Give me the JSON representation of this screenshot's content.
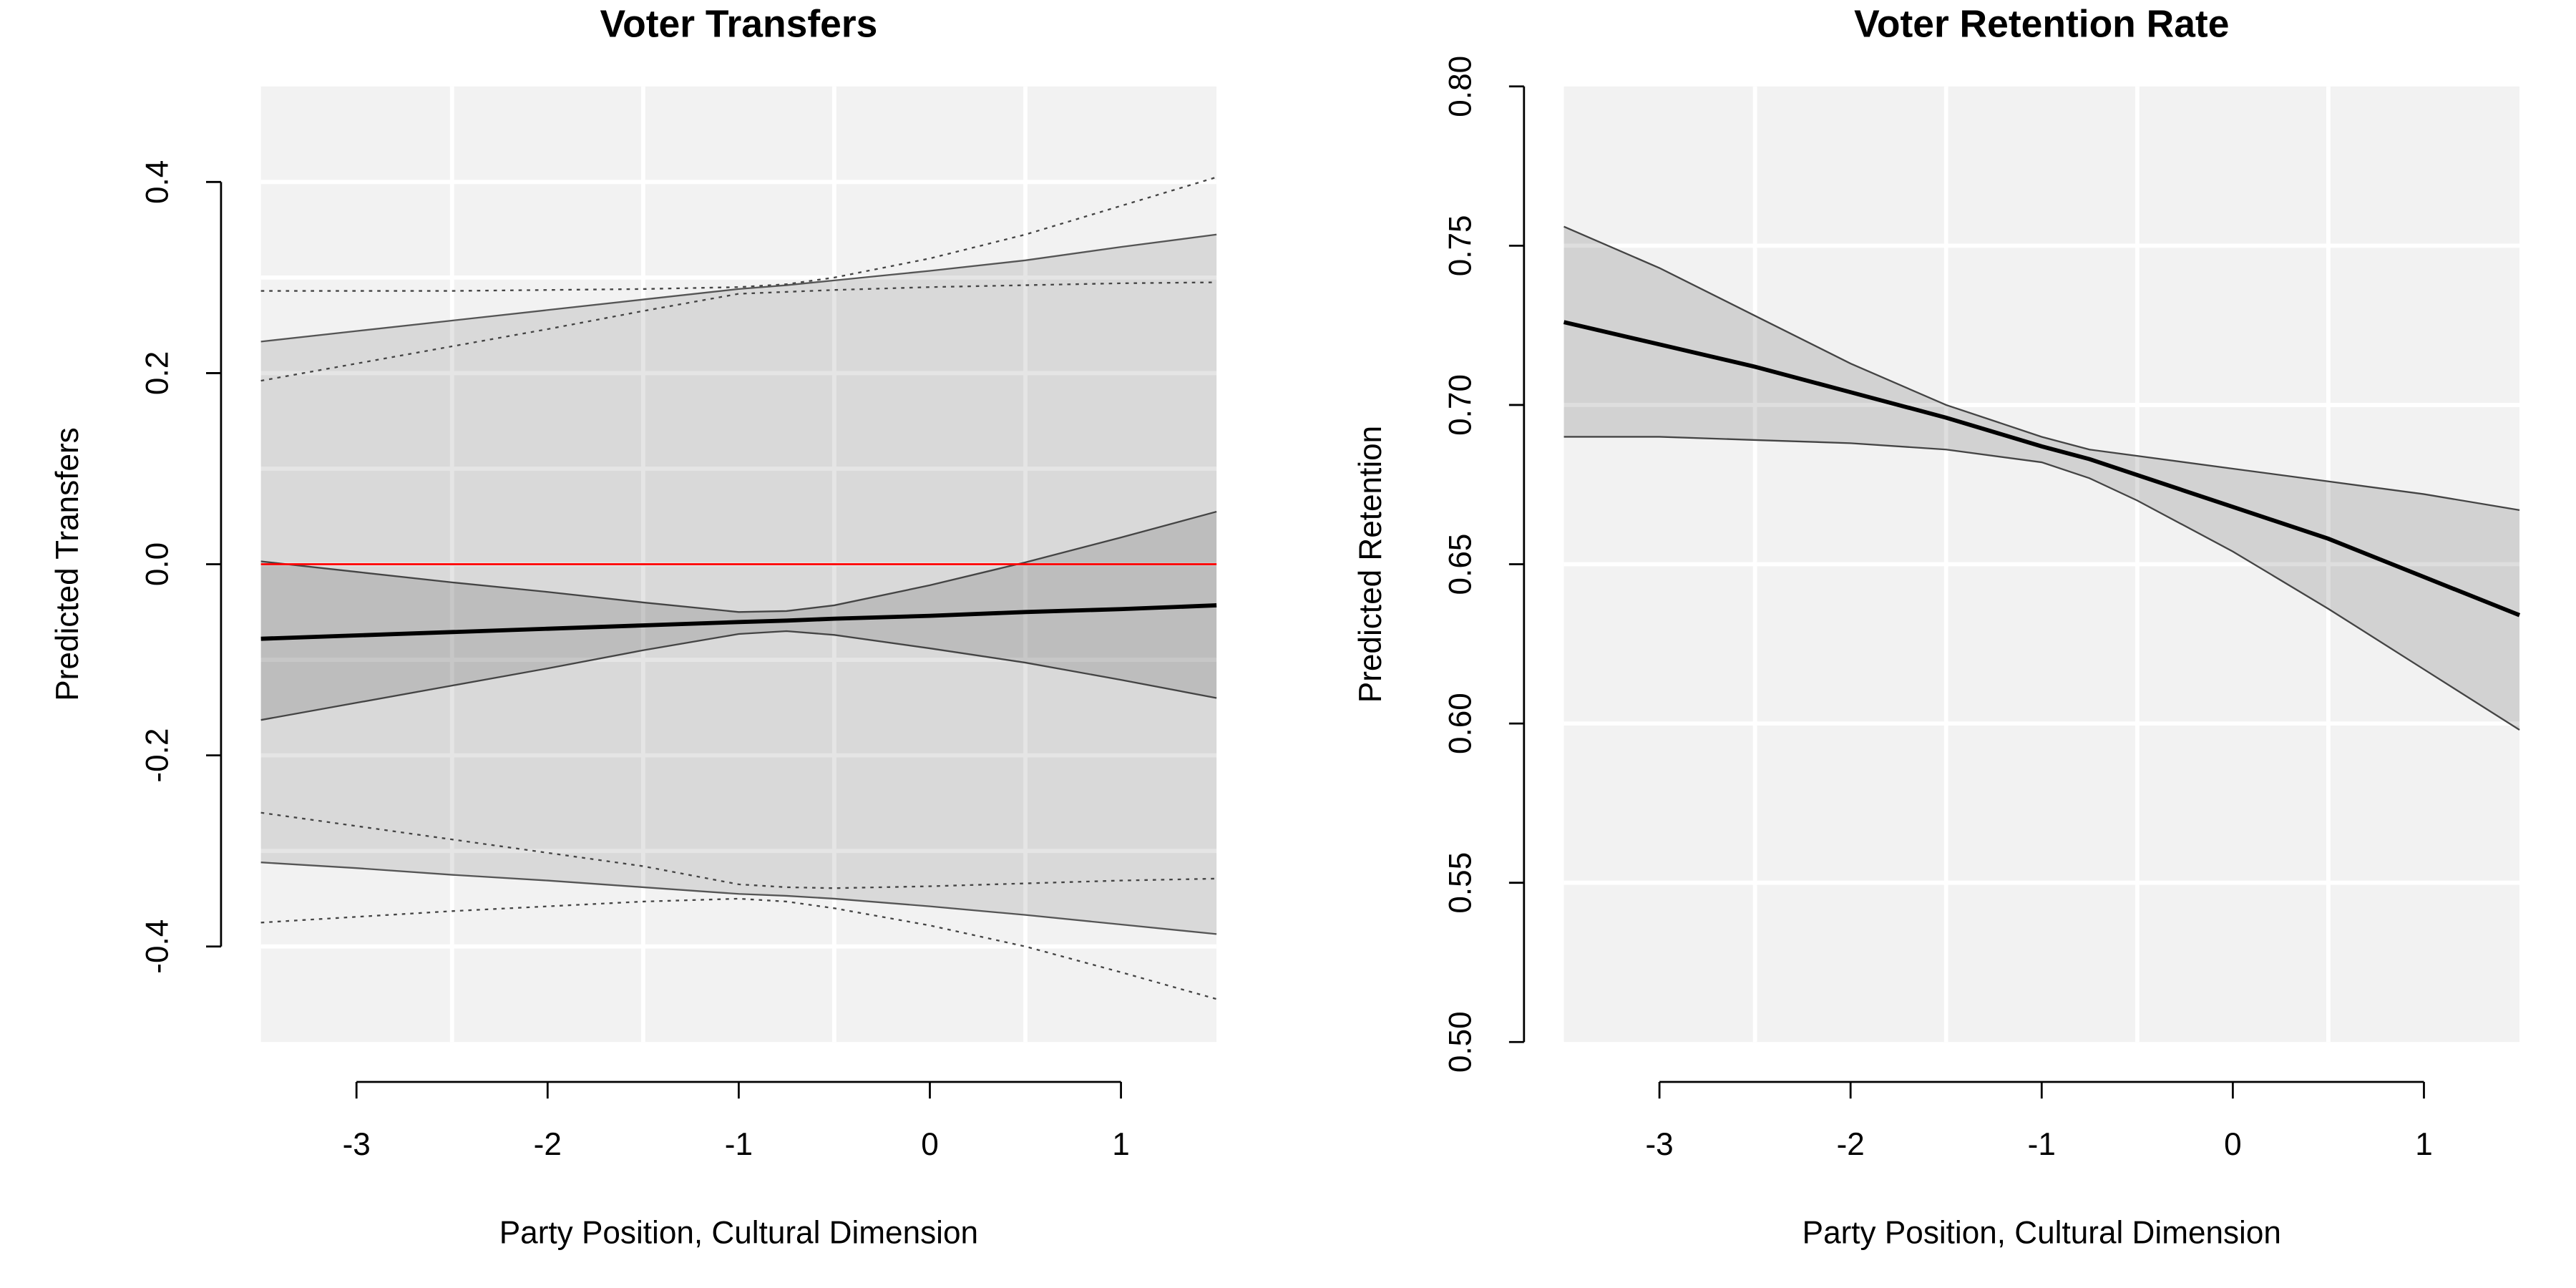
{
  "chart_data": [
    {
      "type": "line",
      "title": "Voter Transfers",
      "xlabel": "Party Position, Cultural Dimension",
      "ylabel": "Predicted Transfers",
      "xlim": [
        -3.5,
        1.5
      ],
      "ylim": [
        -0.5,
        0.5
      ],
      "xticks": [
        -3,
        -2,
        -1,
        0,
        1
      ],
      "yticks": [
        -0.4,
        -0.2,
        {
          "value": 0,
          "label": "0.0"
        },
        0.2,
        0.4
      ],
      "grid": true,
      "xgrid": [
        -2.5,
        -1.5,
        -0.5,
        0.5
      ],
      "ygrid": [
        -0.4,
        -0.3,
        -0.2,
        -0.1,
        0,
        0.1,
        0.2,
        0.3,
        0.4
      ],
      "x": [
        -3.5,
        -3,
        -2.5,
        -2,
        -1.5,
        -1,
        -0.75,
        -0.5,
        0,
        0.5,
        1,
        1.5
      ],
      "bands": [
        {
          "fill": "rgba(0,0,0,0.1)",
          "edge": "#555555",
          "upper": [
            0.233,
            0.244,
            0.255,
            0.266,
            0.277,
            0.288,
            0.292,
            0.297,
            0.307,
            0.318,
            0.332,
            0.345
          ],
          "lower": [
            -0.312,
            -0.318,
            -0.325,
            -0.331,
            -0.338,
            -0.345,
            -0.347,
            -0.35,
            -0.358,
            -0.367,
            -0.377,
            -0.387
          ]
        },
        {
          "fill": "rgba(0,0,0,0.13)",
          "edge": "#444444",
          "upper": [
            0.003,
            -0.008,
            -0.019,
            -0.029,
            -0.04,
            -0.05,
            -0.049,
            -0.043,
            -0.022,
            0.002,
            0.028,
            0.055
          ],
          "lower": [
            -0.163,
            -0.145,
            -0.127,
            -0.109,
            -0.09,
            -0.073,
            -0.07,
            -0.074,
            -0.088,
            -0.103,
            -0.121,
            -0.14
          ]
        }
      ],
      "series": [
        {
          "color": "#444444",
          "style": "dotted",
          "width": 1,
          "values": [
            0.286,
            0.286,
            0.286,
            0.287,
            0.288,
            0.29,
            0.293,
            0.3,
            0.32,
            0.345,
            0.375,
            0.405
          ]
        },
        {
          "color": "#444444",
          "style": "dotted",
          "width": 1,
          "values": [
            0.192,
            0.21,
            0.228,
            0.246,
            0.265,
            0.283,
            0.285,
            0.287,
            0.29,
            0.292,
            0.294,
            0.295
          ]
        },
        {
          "color": "#444444",
          "style": "dotted",
          "width": 1,
          "values": [
            -0.26,
            -0.274,
            -0.288,
            -0.302,
            -0.316,
            -0.335,
            -0.338,
            -0.339,
            -0.337,
            -0.334,
            -0.331,
            -0.329
          ]
        },
        {
          "color": "#444444",
          "style": "dotted",
          "width": 1,
          "values": [
            -0.375,
            -0.369,
            -0.363,
            -0.358,
            -0.353,
            -0.35,
            -0.353,
            -0.36,
            -0.378,
            -0.4,
            -0.427,
            -0.455
          ]
        },
        {
          "color": "#000000",
          "style": "solid",
          "width": 2.5,
          "values": [
            -0.078,
            -0.0745,
            -0.071,
            -0.0675,
            -0.064,
            -0.0605,
            -0.059,
            -0.057,
            -0.054,
            -0.05,
            -0.047,
            -0.043
          ]
        }
      ],
      "hline": {
        "value": 0,
        "color": "#ff0000"
      }
    },
    {
      "type": "line",
      "title": "Voter Retention Rate",
      "xlabel": "Party Position, Cultural Dimension",
      "ylabel": "Predicted Retention",
      "xlim": [
        -3.5,
        1.5
      ],
      "ylim": [
        0.5,
        0.8
      ],
      "xticks": [
        -3,
        -2,
        -1,
        0,
        1
      ],
      "yticks": [
        {
          "value": 0.5,
          "label": "0.50"
        },
        0.55,
        {
          "value": 0.6,
          "label": "0.60"
        },
        0.65,
        {
          "value": 0.7,
          "label": "0.70"
        },
        0.75,
        {
          "value": 0.8,
          "label": "0.80"
        }
      ],
      "grid": true,
      "xgrid": [
        -2.5,
        -1.5,
        -0.5,
        0.5
      ],
      "ygrid": [
        0.55,
        0.6,
        0.65,
        0.7,
        0.75
      ],
      "x": [
        -3.5,
        -3,
        -2.5,
        -2,
        -1.5,
        -1,
        -0.75,
        -0.5,
        0,
        0.5,
        1,
        1.5
      ],
      "bands": [
        {
          "fill": "rgba(0,0,0,0.13)",
          "edge": "#444444",
          "upper": [
            0.756,
            0.743,
            0.728,
            0.713,
            0.7,
            0.69,
            0.686,
            0.684,
            0.68,
            0.676,
            0.672,
            0.667
          ],
          "lower": [
            0.69,
            0.69,
            0.689,
            0.688,
            0.686,
            0.682,
            0.677,
            0.67,
            0.654,
            0.636,
            0.617,
            0.598
          ]
        }
      ],
      "series": [
        {
          "color": "#000000",
          "style": "solid",
          "width": 2.5,
          "values": [
            0.726,
            0.719,
            0.712,
            0.704,
            0.696,
            0.687,
            0.683,
            0.678,
            0.668,
            0.658,
            0.646,
            0.634
          ]
        }
      ]
    }
  ]
}
